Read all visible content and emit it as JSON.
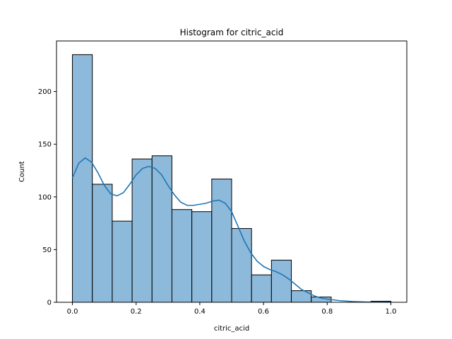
{
  "chart_data": {
    "type": "bar",
    "title": "Histogram for citric_acid",
    "xlabel": "citric_acid",
    "ylabel": "Count",
    "xlim": [
      -0.05,
      1.05
    ],
    "ylim": [
      0,
      248
    ],
    "x_ticks": [
      0.0,
      0.2,
      0.4,
      0.6,
      0.8,
      1.0
    ],
    "x_tick_labels": [
      "0.0",
      "0.2",
      "0.4",
      "0.6",
      "0.8",
      "1.0"
    ],
    "y_ticks": [
      0,
      50,
      100,
      150,
      200
    ],
    "y_tick_labels": [
      "0",
      "50",
      "100",
      "150",
      "200"
    ],
    "bin_width": 0.0625,
    "bin_starts": [
      0.0,
      0.0625,
      0.125,
      0.1875,
      0.25,
      0.3125,
      0.375,
      0.4375,
      0.5,
      0.5625,
      0.625,
      0.6875,
      0.75,
      0.8125,
      0.875,
      0.9375
    ],
    "values": [
      235,
      112,
      77,
      136,
      139,
      88,
      86,
      117,
      70,
      26,
      40,
      11,
      5,
      0,
      0,
      1
    ],
    "kde": {
      "x": [
        0.0,
        0.02,
        0.04,
        0.06,
        0.08,
        0.1,
        0.12,
        0.14,
        0.16,
        0.18,
        0.2,
        0.22,
        0.24,
        0.26,
        0.28,
        0.3,
        0.32,
        0.34,
        0.36,
        0.38,
        0.4,
        0.42,
        0.44,
        0.46,
        0.48,
        0.5,
        0.52,
        0.54,
        0.56,
        0.58,
        0.6,
        0.62,
        0.64,
        0.66,
        0.68,
        0.7,
        0.72,
        0.74,
        0.76,
        0.78,
        0.8,
        0.84,
        0.88,
        0.92,
        0.96,
        1.0
      ],
      "y": [
        118,
        132,
        137,
        133,
        123,
        111,
        103,
        101,
        104,
        112,
        121,
        127,
        129,
        127,
        121,
        111,
        102,
        95,
        92,
        92,
        93,
        94,
        96,
        97,
        94,
        86,
        72,
        58,
        47,
        39,
        34,
        31,
        29,
        26,
        22,
        17,
        12,
        9,
        6,
        4,
        3,
        1.5,
        0.7,
        0.3,
        0.2,
        0.1
      ]
    },
    "grid": false,
    "colors": {
      "bar_fill": "#8db9da",
      "bar_edge": "#000000",
      "kde_line": "#1f77b4"
    }
  }
}
